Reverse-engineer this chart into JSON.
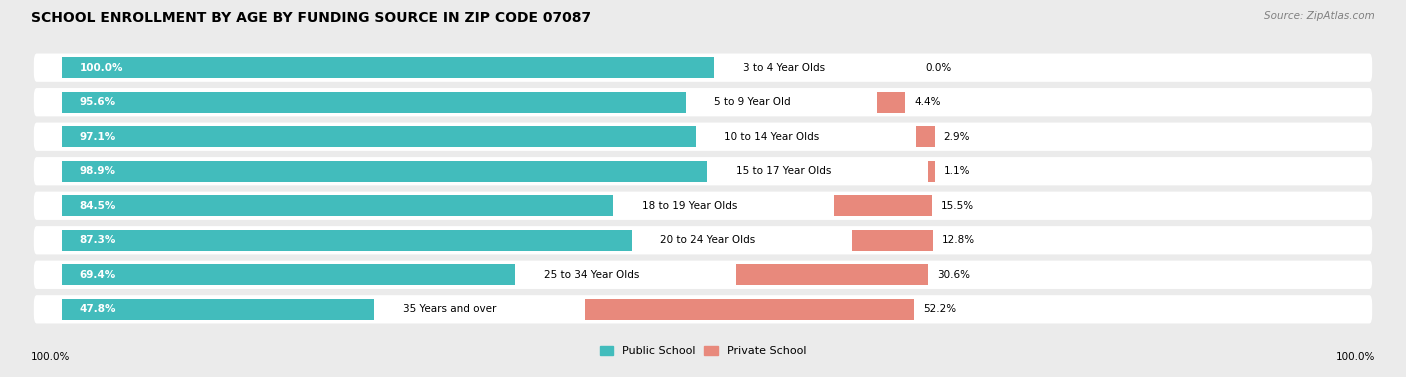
{
  "title": "SCHOOL ENROLLMENT BY AGE BY FUNDING SOURCE IN ZIP CODE 07087",
  "source": "Source: ZipAtlas.com",
  "categories": [
    "3 to 4 Year Olds",
    "5 to 9 Year Old",
    "10 to 14 Year Olds",
    "15 to 17 Year Olds",
    "18 to 19 Year Olds",
    "20 to 24 Year Olds",
    "25 to 34 Year Olds",
    "35 Years and over"
  ],
  "public_values": [
    100.0,
    95.6,
    97.1,
    98.9,
    84.5,
    87.3,
    69.4,
    47.8
  ],
  "private_values": [
    0.0,
    4.4,
    2.9,
    1.1,
    15.5,
    12.8,
    30.6,
    52.2
  ],
  "public_color": "#42BCBC",
  "private_color": "#E8897C",
  "bg_color": "#EBEBEB",
  "row_bg_color": "#FFFFFF",
  "title_fontsize": 10,
  "source_fontsize": 7.5,
  "bar_label_fontsize": 7.5,
  "category_fontsize": 7.5,
  "legend_fontsize": 8,
  "axis_label_fontsize": 7.5,
  "xlim_max": 115
}
